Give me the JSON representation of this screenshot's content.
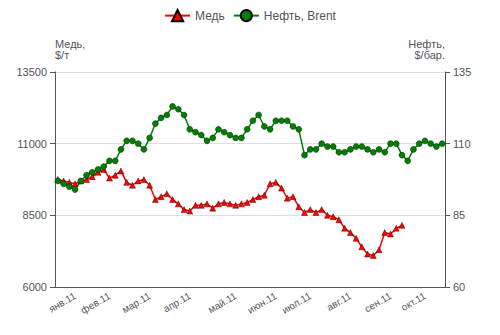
{
  "chart_data": {
    "type": "line",
    "categories": [
      null,
      null,
      null,
      "янв.11",
      null,
      null,
      null,
      null,
      null,
      "фев.11",
      null,
      null,
      null,
      null,
      null,
      null,
      "мар.11",
      null,
      null,
      null,
      null,
      null,
      null,
      "апр.11",
      null,
      null,
      null,
      null,
      null,
      null,
      null,
      "май.11",
      null,
      null,
      null,
      null,
      null,
      null,
      "июн.11",
      null,
      null,
      null,
      null,
      null,
      "июл.11",
      null,
      null,
      null,
      null,
      null,
      null,
      "авг.11",
      null,
      null,
      null,
      null,
      null,
      null,
      "сен.11",
      null,
      null,
      null,
      null,
      null,
      "окт.11",
      null,
      null,
      null
    ],
    "series": [
      {
        "name": "Медь",
        "color": "#ff0000",
        "marker": "triangle",
        "values": [
          9750,
          9700,
          9650,
          9600,
          9700,
          9750,
          9850,
          10000,
          10100,
          9800,
          9900,
          10050,
          9650,
          9550,
          9700,
          9750,
          9550,
          9050,
          9150,
          9250,
          9050,
          8900,
          8700,
          8650,
          8850,
          8850,
          8900,
          8750,
          8900,
          8950,
          8900,
          8850,
          8900,
          8950,
          9050,
          9150,
          9200,
          9600,
          9650,
          9450,
          9100,
          9150,
          8800,
          8600,
          8700,
          8600,
          8700,
          8500,
          8450,
          8350,
          8050,
          7900,
          7700,
          7400,
          7150,
          7100,
          7300,
          7900,
          7850,
          8050,
          8150,
          null,
          null,
          null,
          null,
          null,
          null,
          null
        ]
      },
      {
        "name": "Нефть, Brent",
        "color": "#008000",
        "marker": "circle",
        "axis": "y2",
        "values": [
          97,
          96,
          95,
          94,
          97,
          99,
          100,
          101,
          102,
          104,
          104,
          108,
          111,
          111,
          110,
          108,
          112,
          117,
          119,
          120,
          123,
          122,
          120,
          115,
          114,
          113,
          111,
          112,
          115,
          114,
          113,
          112,
          112,
          115,
          118,
          120,
          116,
          115,
          118,
          118,
          118,
          116,
          115,
          106,
          108,
          108,
          110,
          109,
          109,
          107,
          107,
          108,
          109,
          109,
          108,
          107,
          108,
          107,
          110,
          110,
          106,
          104,
          108,
          110,
          111,
          110,
          109,
          110
        ]
      }
    ],
    "ylabel": "Медь,\n$/т",
    "y2label": "Нефть,\n$/бар.",
    "ylim": [
      6000,
      13500
    ],
    "yticks": [
      6000,
      8500,
      11000,
      13500
    ],
    "y2lim": [
      60,
      135
    ],
    "y2ticks": [
      60,
      85,
      110,
      135
    ],
    "grid": true,
    "legend": "top"
  }
}
